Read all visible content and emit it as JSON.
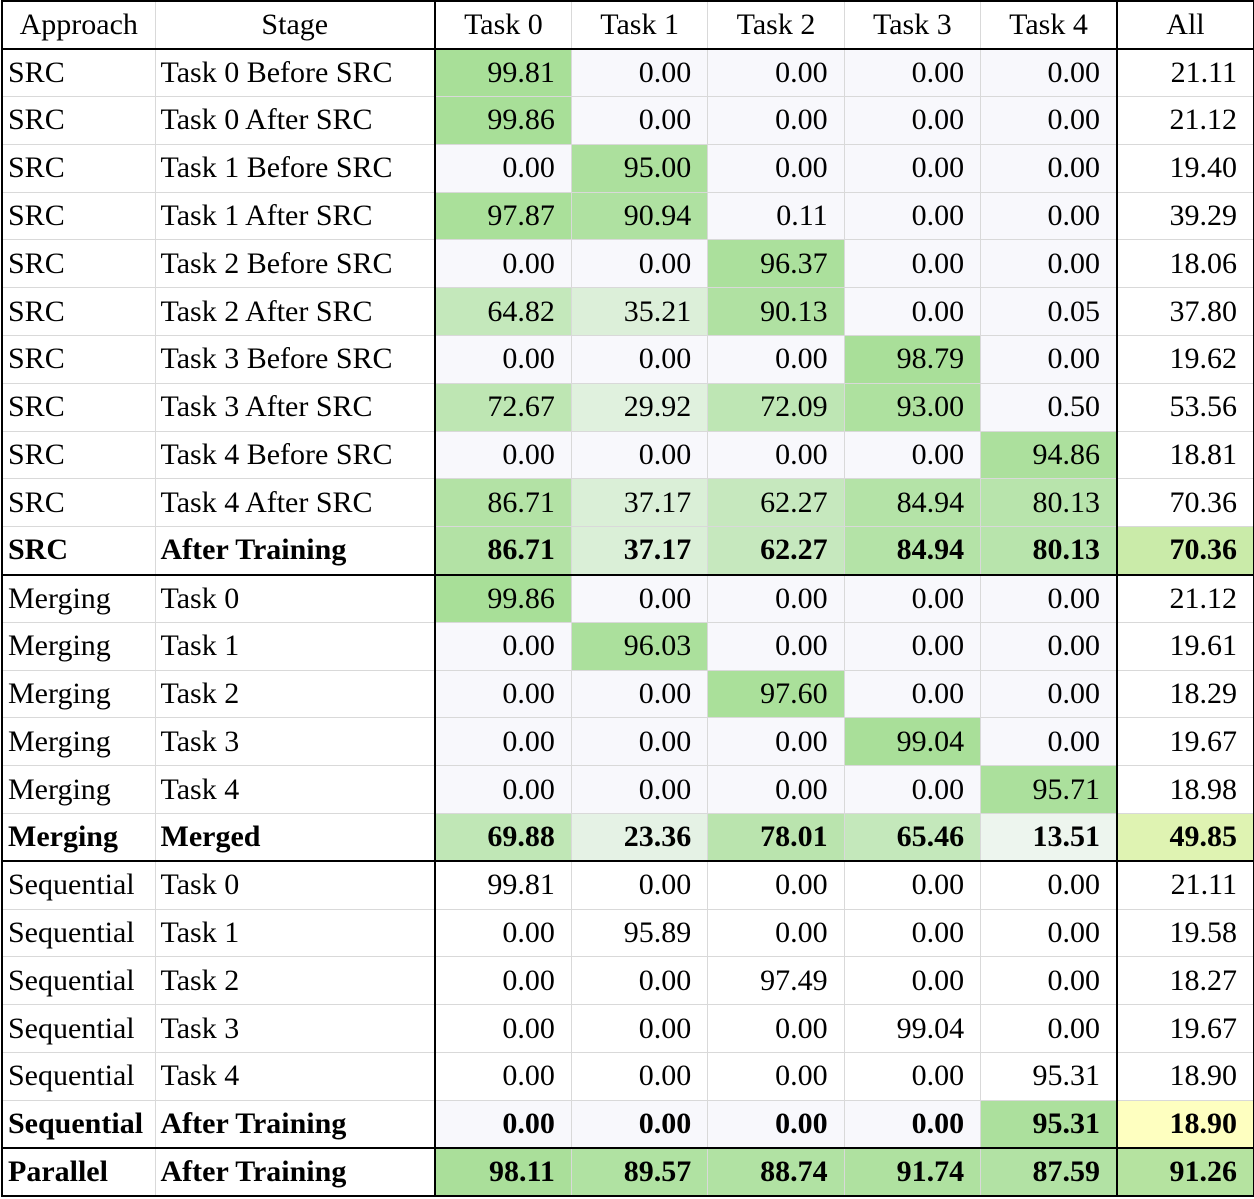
{
  "chart_data": {
    "type": "table",
    "columns": [
      "Approach",
      "Stage",
      "Task 0",
      "Task 1",
      "Task 2",
      "Task 3",
      "Task 4",
      "All"
    ],
    "rows": [
      {
        "approach": "SRC",
        "stage": "Task 0 Before SRC",
        "values": [
          99.81,
          0.0,
          0.0,
          0.0,
          0.0
        ],
        "all": 21.11,
        "bold": false
      },
      {
        "approach": "SRC",
        "stage": "Task 0 After SRC",
        "values": [
          99.86,
          0.0,
          0.0,
          0.0,
          0.0
        ],
        "all": 21.12,
        "bold": false
      },
      {
        "approach": "SRC",
        "stage": "Task 1 Before SRC",
        "values": [
          0.0,
          95.0,
          0.0,
          0.0,
          0.0
        ],
        "all": 19.4,
        "bold": false
      },
      {
        "approach": "SRC",
        "stage": "Task 1 After SRC",
        "values": [
          97.87,
          90.94,
          0.11,
          0.0,
          0.0
        ],
        "all": 39.29,
        "bold": false
      },
      {
        "approach": "SRC",
        "stage": "Task 2 Before SRC",
        "values": [
          0.0,
          0.0,
          96.37,
          0.0,
          0.0
        ],
        "all": 18.06,
        "bold": false
      },
      {
        "approach": "SRC",
        "stage": "Task 2 After SRC",
        "values": [
          64.82,
          35.21,
          90.13,
          0.0,
          0.05
        ],
        "all": 37.8,
        "bold": false
      },
      {
        "approach": "SRC",
        "stage": "Task 3 Before SRC",
        "values": [
          0.0,
          0.0,
          0.0,
          98.79,
          0.0
        ],
        "all": 19.62,
        "bold": false
      },
      {
        "approach": "SRC",
        "stage": "Task 3 After SRC",
        "values": [
          72.67,
          29.92,
          72.09,
          93.0,
          0.5
        ],
        "all": 53.56,
        "bold": false
      },
      {
        "approach": "SRC",
        "stage": "Task 4 Before SRC",
        "values": [
          0.0,
          0.0,
          0.0,
          0.0,
          94.86
        ],
        "all": 18.81,
        "bold": false
      },
      {
        "approach": "SRC",
        "stage": "Task 4 After SRC",
        "values": [
          86.71,
          37.17,
          62.27,
          84.94,
          80.13
        ],
        "all": 70.36,
        "bold": false
      },
      {
        "approach": "SRC",
        "stage": "After Training",
        "values": [
          86.71,
          37.17,
          62.27,
          84.94,
          80.13
        ],
        "all": 70.36,
        "bold": true
      },
      {
        "approach": "Merging",
        "stage": "Task 0",
        "values": [
          99.86,
          0.0,
          0.0,
          0.0,
          0.0
        ],
        "all": 21.12,
        "bold": false
      },
      {
        "approach": "Merging",
        "stage": "Task 1",
        "values": [
          0.0,
          96.03,
          0.0,
          0.0,
          0.0
        ],
        "all": 19.61,
        "bold": false
      },
      {
        "approach": "Merging",
        "stage": "Task 2",
        "values": [
          0.0,
          0.0,
          97.6,
          0.0,
          0.0
        ],
        "all": 18.29,
        "bold": false
      },
      {
        "approach": "Merging",
        "stage": "Task 3",
        "values": [
          0.0,
          0.0,
          0.0,
          99.04,
          0.0
        ],
        "all": 19.67,
        "bold": false
      },
      {
        "approach": "Merging",
        "stage": "Task 4",
        "values": [
          0.0,
          0.0,
          0.0,
          0.0,
          95.71
        ],
        "all": 18.98,
        "bold": false
      },
      {
        "approach": "Merging",
        "stage": "Merged",
        "values": [
          69.88,
          23.36,
          78.01,
          65.46,
          13.51
        ],
        "all": 49.85,
        "bold": true
      },
      {
        "approach": "Sequential",
        "stage": "Task 0",
        "values": [
          99.81,
          0.0,
          0.0,
          0.0,
          0.0
        ],
        "all": 21.11,
        "bold": false
      },
      {
        "approach": "Sequential",
        "stage": "Task 1",
        "values": [
          0.0,
          95.89,
          0.0,
          0.0,
          0.0
        ],
        "all": 19.58,
        "bold": false
      },
      {
        "approach": "Sequential",
        "stage": "Task 2",
        "values": [
          0.0,
          0.0,
          97.49,
          0.0,
          0.0
        ],
        "all": 18.27,
        "bold": false
      },
      {
        "approach": "Sequential",
        "stage": "Task 3",
        "values": [
          0.0,
          0.0,
          0.0,
          99.04,
          0.0
        ],
        "all": 19.67,
        "bold": false
      },
      {
        "approach": "Sequential",
        "stage": "Task 4",
        "values": [
          0.0,
          0.0,
          0.0,
          0.0,
          95.31
        ],
        "all": 18.9,
        "bold": false
      },
      {
        "approach": "Sequential",
        "stage": "After Training",
        "values": [
          0.0,
          0.0,
          0.0,
          0.0,
          95.31
        ],
        "all": 18.9,
        "bold": true
      },
      {
        "approach": "Parallel",
        "stage": "After Training",
        "values": [
          98.11,
          89.57,
          88.74,
          91.74,
          87.59
        ],
        "all": 91.26,
        "bold": true
      }
    ],
    "color_scale": {
      "low": "#f8f8fc",
      "high": "#a8df98",
      "all_low": "#ffffc0",
      "all_high": "#b4e3a0",
      "plain_white_block": "Sequential"
    }
  }
}
